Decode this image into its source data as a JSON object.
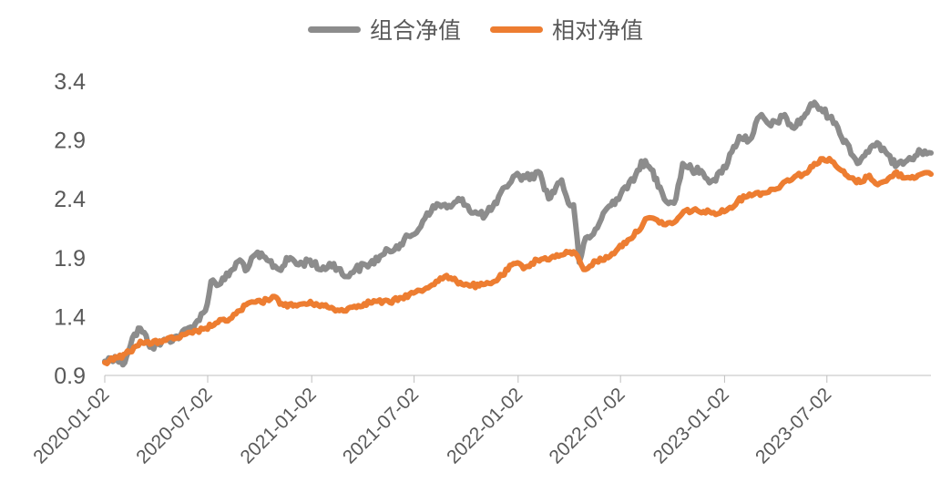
{
  "chart_data": {
    "type": "line",
    "title": "",
    "xlabel": "",
    "ylabel": "",
    "ylim": [
      0.9,
      3.4
    ],
    "y_ticks": [
      "0.9",
      "1.4",
      "1.9",
      "2.4",
      "2.9",
      "3.4"
    ],
    "x_ticks": [
      "2020-01-02",
      "2020-07-02",
      "2021-01-02",
      "2021-07-02",
      "2022-01-02",
      "2022-07-02",
      "2023-01-02",
      "2023-07-02"
    ],
    "x_range": [
      "2020-01-02",
      "2024-01-02"
    ],
    "grid": false,
    "legend_position": "top-center",
    "series": [
      {
        "name": "组合净值",
        "color": "#8C8C8C",
        "points": [
          [
            "2020-01-02",
            1.02
          ],
          [
            "2020-01-20",
            1.06
          ],
          [
            "2020-02-03",
            0.99
          ],
          [
            "2020-02-20",
            1.22
          ],
          [
            "2020-03-05",
            1.3
          ],
          [
            "2020-03-25",
            1.14
          ],
          [
            "2020-04-20",
            1.2
          ],
          [
            "2020-05-15",
            1.24
          ],
          [
            "2020-06-10",
            1.34
          ],
          [
            "2020-06-28",
            1.45
          ],
          [
            "2020-07-08",
            1.7
          ],
          [
            "2020-07-25",
            1.68
          ],
          [
            "2020-08-15",
            1.8
          ],
          [
            "2020-08-28",
            1.88
          ],
          [
            "2020-09-10",
            1.8
          ],
          [
            "2020-09-25",
            1.93
          ],
          [
            "2020-10-15",
            1.88
          ],
          [
            "2020-11-05",
            1.8
          ],
          [
            "2020-11-25",
            1.9
          ],
          [
            "2020-12-10",
            1.84
          ],
          [
            "2020-12-30",
            1.88
          ],
          [
            "2021-01-15",
            1.8
          ],
          [
            "2021-02-10",
            1.85
          ],
          [
            "2021-03-01",
            1.74
          ],
          [
            "2021-03-20",
            1.8
          ],
          [
            "2021-04-15",
            1.85
          ],
          [
            "2021-05-10",
            1.93
          ],
          [
            "2021-06-01",
            2.0
          ],
          [
            "2021-06-25",
            2.08
          ],
          [
            "2021-07-10",
            2.14
          ],
          [
            "2021-07-25",
            2.28
          ],
          [
            "2021-08-15",
            2.35
          ],
          [
            "2021-09-05",
            2.33
          ],
          [
            "2021-09-25",
            2.4
          ],
          [
            "2021-10-15",
            2.28
          ],
          [
            "2021-11-05",
            2.26
          ],
          [
            "2021-11-25",
            2.36
          ],
          [
            "2021-12-10",
            2.5
          ],
          [
            "2021-12-28",
            2.6
          ],
          [
            "2022-01-15",
            2.58
          ],
          [
            "2022-02-10",
            2.62
          ],
          [
            "2022-02-25",
            2.4
          ],
          [
            "2022-03-10",
            2.5
          ],
          [
            "2022-03-20",
            2.56
          ],
          [
            "2022-04-01",
            2.36
          ],
          [
            "2022-04-10",
            2.35
          ],
          [
            "2022-04-20",
            1.86
          ],
          [
            "2022-04-28",
            2.02
          ],
          [
            "2022-05-15",
            2.1
          ],
          [
            "2022-06-05",
            2.3
          ],
          [
            "2022-06-25",
            2.4
          ],
          [
            "2022-07-10",
            2.5
          ],
          [
            "2022-07-25",
            2.55
          ],
          [
            "2022-08-08",
            2.72
          ],
          [
            "2022-08-25",
            2.65
          ],
          [
            "2022-09-10",
            2.5
          ],
          [
            "2022-09-25",
            2.36
          ],
          [
            "2022-10-08",
            2.4
          ],
          [
            "2022-10-20",
            2.7
          ],
          [
            "2022-11-05",
            2.65
          ],
          [
            "2022-11-25",
            2.62
          ],
          [
            "2022-12-10",
            2.55
          ],
          [
            "2022-12-28",
            2.62
          ],
          [
            "2023-01-15",
            2.8
          ],
          [
            "2023-01-28",
            2.93
          ],
          [
            "2023-02-15",
            2.9
          ],
          [
            "2023-03-05",
            3.1
          ],
          [
            "2023-03-25",
            3.02
          ],
          [
            "2023-04-15",
            3.1
          ],
          [
            "2023-05-05",
            3.0
          ],
          [
            "2023-05-25",
            3.12
          ],
          [
            "2023-06-10",
            3.22
          ],
          [
            "2023-06-25",
            3.14
          ],
          [
            "2023-07-10",
            3.1
          ],
          [
            "2023-07-25",
            2.95
          ],
          [
            "2023-08-10",
            2.85
          ],
          [
            "2023-08-25",
            2.7
          ],
          [
            "2023-09-10",
            2.8
          ],
          [
            "2023-09-25",
            2.85
          ],
          [
            "2023-10-10",
            2.83
          ],
          [
            "2023-10-25",
            2.7
          ],
          [
            "2023-11-10",
            2.72
          ],
          [
            "2023-11-25",
            2.75
          ],
          [
            "2023-12-15",
            2.8
          ],
          [
            "2024-01-02",
            2.79
          ]
        ]
      },
      {
        "name": "相对净值",
        "color": "#ED7D31",
        "points": [
          [
            "2020-01-02",
            1.01
          ],
          [
            "2020-01-25",
            1.05
          ],
          [
            "2020-02-15",
            1.1
          ],
          [
            "2020-03-05",
            1.19
          ],
          [
            "2020-03-25",
            1.17
          ],
          [
            "2020-04-15",
            1.2
          ],
          [
            "2020-05-10",
            1.22
          ],
          [
            "2020-06-05",
            1.26
          ],
          [
            "2020-06-28",
            1.3
          ],
          [
            "2020-07-20",
            1.35
          ],
          [
            "2020-08-10",
            1.38
          ],
          [
            "2020-08-28",
            1.45
          ],
          [
            "2020-09-15",
            1.52
          ],
          [
            "2020-10-05",
            1.52
          ],
          [
            "2020-10-25",
            1.57
          ],
          [
            "2020-11-10",
            1.51
          ],
          [
            "2020-11-30",
            1.49
          ],
          [
            "2020-12-20",
            1.51
          ],
          [
            "2021-01-10",
            1.51
          ],
          [
            "2021-01-30",
            1.48
          ],
          [
            "2021-02-20",
            1.45
          ],
          [
            "2021-03-15",
            1.48
          ],
          [
            "2021-04-05",
            1.51
          ],
          [
            "2021-04-25",
            1.53
          ],
          [
            "2021-05-20",
            1.52
          ],
          [
            "2021-06-10",
            1.56
          ],
          [
            "2021-07-01",
            1.6
          ],
          [
            "2021-07-20",
            1.63
          ],
          [
            "2021-08-10",
            1.7
          ],
          [
            "2021-08-25",
            1.74
          ],
          [
            "2021-09-15",
            1.7
          ],
          [
            "2021-10-05",
            1.67
          ],
          [
            "2021-10-25",
            1.66
          ],
          [
            "2021-11-15",
            1.68
          ],
          [
            "2021-12-05",
            1.75
          ],
          [
            "2021-12-25",
            1.85
          ],
          [
            "2022-01-15",
            1.82
          ],
          [
            "2022-02-05",
            1.88
          ],
          [
            "2022-03-01",
            1.9
          ],
          [
            "2022-03-25",
            1.93
          ],
          [
            "2022-04-10",
            1.95
          ],
          [
            "2022-04-20",
            1.88
          ],
          [
            "2022-04-28",
            1.8
          ],
          [
            "2022-05-20",
            1.87
          ],
          [
            "2022-06-10",
            1.9
          ],
          [
            "2022-06-28",
            1.98
          ],
          [
            "2022-07-15",
            2.05
          ],
          [
            "2022-08-01",
            2.12
          ],
          [
            "2022-08-15",
            2.23
          ],
          [
            "2022-09-05",
            2.22
          ],
          [
            "2022-09-20",
            2.18
          ],
          [
            "2022-10-05",
            2.2
          ],
          [
            "2022-10-25",
            2.3
          ],
          [
            "2022-11-15",
            2.3
          ],
          [
            "2022-12-10",
            2.28
          ],
          [
            "2023-01-05",
            2.3
          ],
          [
            "2023-01-25",
            2.38
          ],
          [
            "2023-02-15",
            2.44
          ],
          [
            "2023-03-10",
            2.45
          ],
          [
            "2023-04-01",
            2.48
          ],
          [
            "2023-04-20",
            2.55
          ],
          [
            "2023-05-10",
            2.6
          ],
          [
            "2023-05-28",
            2.62
          ],
          [
            "2023-06-10",
            2.7
          ],
          [
            "2023-06-25",
            2.74
          ],
          [
            "2023-07-10",
            2.72
          ],
          [
            "2023-07-25",
            2.65
          ],
          [
            "2023-08-10",
            2.58
          ],
          [
            "2023-08-30",
            2.54
          ],
          [
            "2023-09-15",
            2.6
          ],
          [
            "2023-09-30",
            2.52
          ],
          [
            "2023-10-15",
            2.55
          ],
          [
            "2023-10-30",
            2.62
          ],
          [
            "2023-11-20",
            2.58
          ],
          [
            "2023-12-10",
            2.6
          ],
          [
            "2024-01-02",
            2.61
          ]
        ]
      }
    ]
  }
}
